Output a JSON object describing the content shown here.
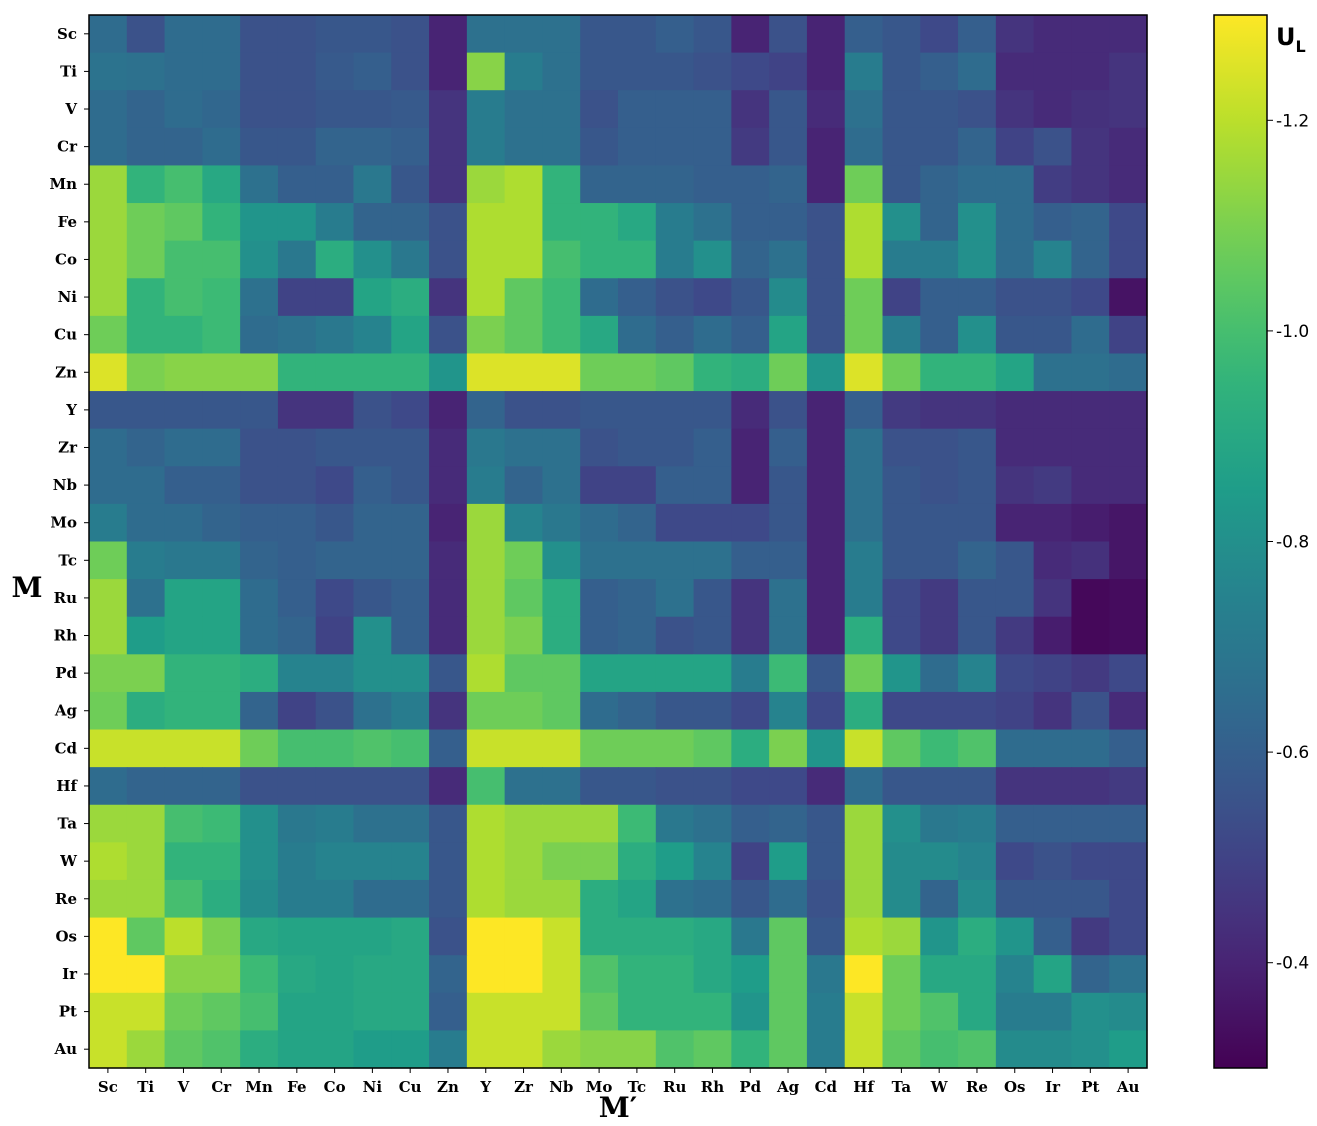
{
  "chart_data": {
    "type": "heatmap",
    "title": "",
    "xlabel": "M′",
    "ylabel": "M",
    "x_categories": [
      "Sc",
      "Ti",
      "V",
      "Cr",
      "Mn",
      "Fe",
      "Co",
      "Ni",
      "Cu",
      "Zn",
      "Y",
      "Zr",
      "Nb",
      "Mo",
      "Tc",
      "Ru",
      "Rh",
      "Pd",
      "Ag",
      "Cd",
      "Hf",
      "Ta",
      "W",
      "Re",
      "Os",
      "Ir",
      "Pt",
      "Au"
    ],
    "y_categories": [
      "Sc",
      "Ti",
      "V",
      "Cr",
      "Mn",
      "Fe",
      "Co",
      "Ni",
      "Cu",
      "Zn",
      "Y",
      "Zr",
      "Nb",
      "Mo",
      "Tc",
      "Ru",
      "Rh",
      "Pd",
      "Ag",
      "Cd",
      "Hf",
      "Ta",
      "W",
      "Re",
      "Os",
      "Ir",
      "Pt",
      "Au"
    ],
    "values": [
      [
        -0.65,
        -0.55,
        -0.65,
        -0.65,
        -0.55,
        -0.55,
        -0.57,
        -0.57,
        -0.55,
        -0.4,
        -0.67,
        -0.67,
        -0.67,
        -0.57,
        -0.57,
        -0.6,
        -0.57,
        -0.4,
        -0.55,
        -0.4,
        -0.6,
        -0.57,
        -0.52,
        -0.6,
        -0.45,
        -0.42,
        -0.42,
        -0.42
      ],
      [
        -0.68,
        -0.67,
        -0.65,
        -0.65,
        -0.55,
        -0.55,
        -0.58,
        -0.6,
        -0.55,
        -0.4,
        -1.12,
        -0.72,
        -0.67,
        -0.57,
        -0.57,
        -0.57,
        -0.55,
        -0.52,
        -0.5,
        -0.4,
        -0.72,
        -0.57,
        -0.6,
        -0.65,
        -0.42,
        -0.42,
        -0.42,
        -0.45
      ],
      [
        -0.65,
        -0.62,
        -0.65,
        -0.63,
        -0.55,
        -0.55,
        -0.57,
        -0.57,
        -0.58,
        -0.45,
        -0.72,
        -0.67,
        -0.67,
        -0.55,
        -0.6,
        -0.6,
        -0.6,
        -0.45,
        -0.57,
        -0.42,
        -0.67,
        -0.57,
        -0.57,
        -0.55,
        -0.45,
        -0.42,
        -0.44,
        -0.45
      ],
      [
        -0.65,
        -0.62,
        -0.62,
        -0.65,
        -0.57,
        -0.57,
        -0.62,
        -0.62,
        -0.6,
        -0.45,
        -0.72,
        -0.67,
        -0.67,
        -0.57,
        -0.6,
        -0.6,
        -0.6,
        -0.47,
        -0.57,
        -0.4,
        -0.65,
        -0.57,
        -0.57,
        -0.62,
        -0.5,
        -0.55,
        -0.45,
        -0.42
      ],
      [
        -1.15,
        -0.95,
        -1.0,
        -0.9,
        -0.67,
        -0.6,
        -0.6,
        -0.7,
        -0.57,
        -0.45,
        -1.15,
        -1.18,
        -0.95,
        -0.62,
        -0.62,
        -0.62,
        -0.6,
        -0.6,
        -0.62,
        -0.4,
        -1.08,
        -0.57,
        -0.62,
        -0.65,
        -0.65,
        -0.48,
        -0.45,
        -0.42
      ],
      [
        -1.15,
        -1.08,
        -1.05,
        -0.95,
        -0.82,
        -0.82,
        -0.72,
        -0.62,
        -0.62,
        -0.55,
        -1.18,
        -1.18,
        -0.95,
        -0.95,
        -0.9,
        -0.72,
        -0.67,
        -0.6,
        -0.6,
        -0.55,
        -1.18,
        -0.8,
        -0.62,
        -0.8,
        -0.65,
        -0.6,
        -0.62,
        -0.52
      ],
      [
        -1.15,
        -1.08,
        -1.0,
        -1.0,
        -0.8,
        -0.7,
        -0.92,
        -0.8,
        -0.7,
        -0.55,
        -1.18,
        -1.18,
        -1.0,
        -0.95,
        -0.95,
        -0.72,
        -0.8,
        -0.62,
        -0.67,
        -0.55,
        -1.18,
        -0.72,
        -0.72,
        -0.8,
        -0.65,
        -0.75,
        -0.62,
        -0.52
      ],
      [
        -1.15,
        -0.95,
        -1.0,
        -0.98,
        -0.67,
        -0.5,
        -0.5,
        -0.88,
        -0.92,
        -0.45,
        -1.18,
        -1.05,
        -0.98,
        -0.65,
        -0.6,
        -0.55,
        -0.52,
        -0.57,
        -0.78,
        -0.55,
        -1.08,
        -0.5,
        -0.6,
        -0.6,
        -0.55,
        -0.55,
        -0.52,
        -0.35
      ],
      [
        -1.08,
        -0.95,
        -0.95,
        -0.98,
        -0.65,
        -0.67,
        -0.7,
        -0.75,
        -0.88,
        -0.55,
        -1.1,
        -1.05,
        -0.98,
        -0.9,
        -0.65,
        -0.6,
        -0.65,
        -0.6,
        -0.88,
        -0.55,
        -1.08,
        -0.72,
        -0.6,
        -0.8,
        -0.57,
        -0.57,
        -0.65,
        -0.5
      ],
      [
        -1.25,
        -1.1,
        -1.12,
        -1.12,
        -1.12,
        -0.95,
        -0.95,
        -0.95,
        -0.95,
        -0.82,
        -1.25,
        -1.25,
        -1.25,
        -1.08,
        -1.08,
        -1.05,
        -0.95,
        -0.92,
        -1.08,
        -0.82,
        -1.25,
        -1.08,
        -0.95,
        -0.95,
        -0.88,
        -0.67,
        -0.67,
        -0.65
      ],
      [
        -0.57,
        -0.57,
        -0.57,
        -0.57,
        -0.57,
        -0.45,
        -0.45,
        -0.55,
        -0.52,
        -0.4,
        -0.62,
        -0.55,
        -0.55,
        -0.57,
        -0.57,
        -0.57,
        -0.57,
        -0.42,
        -0.55,
        -0.4,
        -0.6,
        -0.47,
        -0.45,
        -0.45,
        -0.42,
        -0.42,
        -0.42,
        -0.42
      ],
      [
        -0.65,
        -0.62,
        -0.65,
        -0.65,
        -0.55,
        -0.55,
        -0.57,
        -0.57,
        -0.57,
        -0.42,
        -0.7,
        -0.67,
        -0.67,
        -0.55,
        -0.57,
        -0.57,
        -0.6,
        -0.4,
        -0.6,
        -0.4,
        -0.67,
        -0.55,
        -0.55,
        -0.57,
        -0.42,
        -0.42,
        -0.42,
        -0.42
      ],
      [
        -0.65,
        -0.65,
        -0.6,
        -0.6,
        -0.55,
        -0.55,
        -0.52,
        -0.6,
        -0.57,
        -0.42,
        -0.72,
        -0.62,
        -0.67,
        -0.5,
        -0.5,
        -0.6,
        -0.6,
        -0.4,
        -0.57,
        -0.4,
        -0.67,
        -0.57,
        -0.55,
        -0.57,
        -0.45,
        -0.47,
        -0.42,
        -0.42
      ],
      [
        -0.72,
        -0.65,
        -0.65,
        -0.62,
        -0.6,
        -0.6,
        -0.57,
        -0.62,
        -0.62,
        -0.4,
        -1.15,
        -0.75,
        -0.7,
        -0.65,
        -0.62,
        -0.52,
        -0.52,
        -0.52,
        -0.57,
        -0.4,
        -0.67,
        -0.57,
        -0.57,
        -0.57,
        -0.4,
        -0.4,
        -0.38,
        -0.36
      ],
      [
        -1.08,
        -0.72,
        -0.7,
        -0.7,
        -0.62,
        -0.6,
        -0.62,
        -0.62,
        -0.62,
        -0.42,
        -1.15,
        -1.08,
        -0.8,
        -0.67,
        -0.67,
        -0.67,
        -0.67,
        -0.6,
        -0.6,
        -0.4,
        -0.72,
        -0.57,
        -0.57,
        -0.62,
        -0.57,
        -0.42,
        -0.44,
        -0.36
      ],
      [
        -1.15,
        -0.67,
        -0.88,
        -0.88,
        -0.65,
        -0.6,
        -0.52,
        -0.57,
        -0.6,
        -0.42,
        -1.15,
        -1.05,
        -0.92,
        -0.6,
        -0.62,
        -0.67,
        -0.57,
        -0.45,
        -0.67,
        -0.4,
        -0.72,
        -0.52,
        -0.47,
        -0.57,
        -0.57,
        -0.45,
        -0.32,
        -0.33
      ],
      [
        -1.15,
        -0.85,
        -0.88,
        -0.88,
        -0.65,
        -0.62,
        -0.5,
        -0.8,
        -0.6,
        -0.42,
        -1.15,
        -1.1,
        -0.92,
        -0.6,
        -0.62,
        -0.55,
        -0.57,
        -0.45,
        -0.67,
        -0.4,
        -0.92,
        -0.52,
        -0.47,
        -0.57,
        -0.47,
        -0.38,
        -0.32,
        -0.33
      ],
      [
        -1.1,
        -1.1,
        -0.95,
        -0.95,
        -0.92,
        -0.75,
        -0.75,
        -0.8,
        -0.8,
        -0.57,
        -1.18,
        -1.05,
        -1.05,
        -0.88,
        -0.88,
        -0.88,
        -0.88,
        -0.72,
        -0.98,
        -0.57,
        -1.08,
        -0.82,
        -0.65,
        -0.75,
        -0.52,
        -0.5,
        -0.47,
        -0.52
      ],
      [
        -1.08,
        -0.92,
        -0.95,
        -0.95,
        -0.62,
        -0.5,
        -0.55,
        -0.67,
        -0.72,
        -0.45,
        -1.08,
        -1.08,
        -1.05,
        -0.65,
        -0.62,
        -0.57,
        -0.57,
        -0.52,
        -0.75,
        -0.52,
        -0.92,
        -0.52,
        -0.52,
        -0.52,
        -0.5,
        -0.45,
        -0.55,
        -0.42
      ],
      [
        -1.22,
        -1.22,
        -1.22,
        -1.22,
        -1.08,
        -1.0,
        -1.0,
        -1.02,
        -1.0,
        -0.6,
        -1.22,
        -1.22,
        -1.22,
        -1.08,
        -1.08,
        -1.08,
        -1.05,
        -0.92,
        -1.1,
        -0.82,
        -1.22,
        -1.05,
        -0.98,
        -1.02,
        -0.65,
        -0.65,
        -0.65,
        -0.6
      ],
      [
        -0.65,
        -0.62,
        -0.62,
        -0.62,
        -0.55,
        -0.55,
        -0.55,
        -0.55,
        -0.55,
        -0.42,
        -1.0,
        -0.67,
        -0.67,
        -0.57,
        -0.57,
        -0.55,
        -0.55,
        -0.52,
        -0.52,
        -0.42,
        -0.65,
        -0.57,
        -0.57,
        -0.57,
        -0.45,
        -0.45,
        -0.45,
        -0.47
      ],
      [
        -1.15,
        -1.15,
        -1.0,
        -0.98,
        -0.8,
        -0.7,
        -0.72,
        -0.67,
        -0.67,
        -0.57,
        -1.18,
        -1.15,
        -1.15,
        -1.15,
        -0.98,
        -0.7,
        -0.67,
        -0.6,
        -0.62,
        -0.57,
        -1.15,
        -0.8,
        -0.7,
        -0.72,
        -0.6,
        -0.6,
        -0.6,
        -0.6
      ],
      [
        -1.18,
        -1.15,
        -0.95,
        -0.95,
        -0.8,
        -0.72,
        -0.75,
        -0.75,
        -0.75,
        -0.57,
        -1.18,
        -1.15,
        -1.1,
        -1.1,
        -0.92,
        -0.85,
        -0.75,
        -0.5,
        -0.85,
        -0.57,
        -1.15,
        -0.78,
        -0.78,
        -0.75,
        -0.52,
        -0.55,
        -0.52,
        -0.52
      ],
      [
        -1.15,
        -1.15,
        -1.0,
        -0.92,
        -0.78,
        -0.72,
        -0.72,
        -0.65,
        -0.65,
        -0.57,
        -1.18,
        -1.15,
        -1.15,
        -0.92,
        -0.88,
        -0.67,
        -0.65,
        -0.57,
        -0.65,
        -0.55,
        -1.15,
        -0.78,
        -0.62,
        -0.78,
        -0.57,
        -0.57,
        -0.57,
        -0.52
      ],
      [
        -1.3,
        -1.05,
        -1.2,
        -1.1,
        -0.9,
        -0.88,
        -0.88,
        -0.88,
        -0.9,
        -0.55,
        -1.3,
        -1.3,
        -1.22,
        -0.92,
        -0.92,
        -0.92,
        -0.9,
        -0.7,
        -1.05,
        -0.57,
        -1.18,
        -1.15,
        -0.82,
        -0.92,
        -0.82,
        -0.6,
        -0.47,
        -0.52
      ],
      [
        -1.3,
        -1.3,
        -1.12,
        -1.12,
        -0.98,
        -0.9,
        -0.88,
        -0.9,
        -0.9,
        -0.62,
        -1.3,
        -1.3,
        -1.22,
        -1.02,
        -0.95,
        -0.95,
        -0.9,
        -0.85,
        -1.05,
        -0.7,
        -1.3,
        -1.08,
        -0.9,
        -0.9,
        -0.75,
        -0.88,
        -0.62,
        -0.67
      ],
      [
        -1.22,
        -1.22,
        -1.08,
        -1.05,
        -1.0,
        -0.88,
        -0.88,
        -0.9,
        -0.9,
        -0.6,
        -1.22,
        -1.22,
        -1.22,
        -1.05,
        -0.95,
        -0.95,
        -0.95,
        -0.82,
        -1.05,
        -0.72,
        -1.22,
        -1.08,
        -1.02,
        -0.9,
        -0.72,
        -0.72,
        -0.8,
        -0.78
      ],
      [
        -1.22,
        -1.15,
        -1.05,
        -1.02,
        -0.92,
        -0.88,
        -0.88,
        -0.85,
        -0.85,
        -0.72,
        -1.22,
        -1.22,
        -1.15,
        -1.12,
        -1.12,
        -1.02,
        -1.05,
        -0.95,
        -1.05,
        -0.72,
        -1.22,
        -1.05,
        -1.0,
        -1.02,
        -0.78,
        -0.78,
        -0.8,
        -0.85
      ]
    ],
    "colorbar": {
      "label": "U",
      "label_sub": "L",
      "range": [
        -1.3,
        -0.3
      ],
      "ticks": [
        -1.2,
        -1.0,
        -0.8,
        -0.6,
        -0.4
      ],
      "tick_labels": [
        "-1.2",
        "-1.0",
        "-0.8",
        "-0.6",
        "-0.4"
      ],
      "colormap": "viridis_r"
    }
  }
}
